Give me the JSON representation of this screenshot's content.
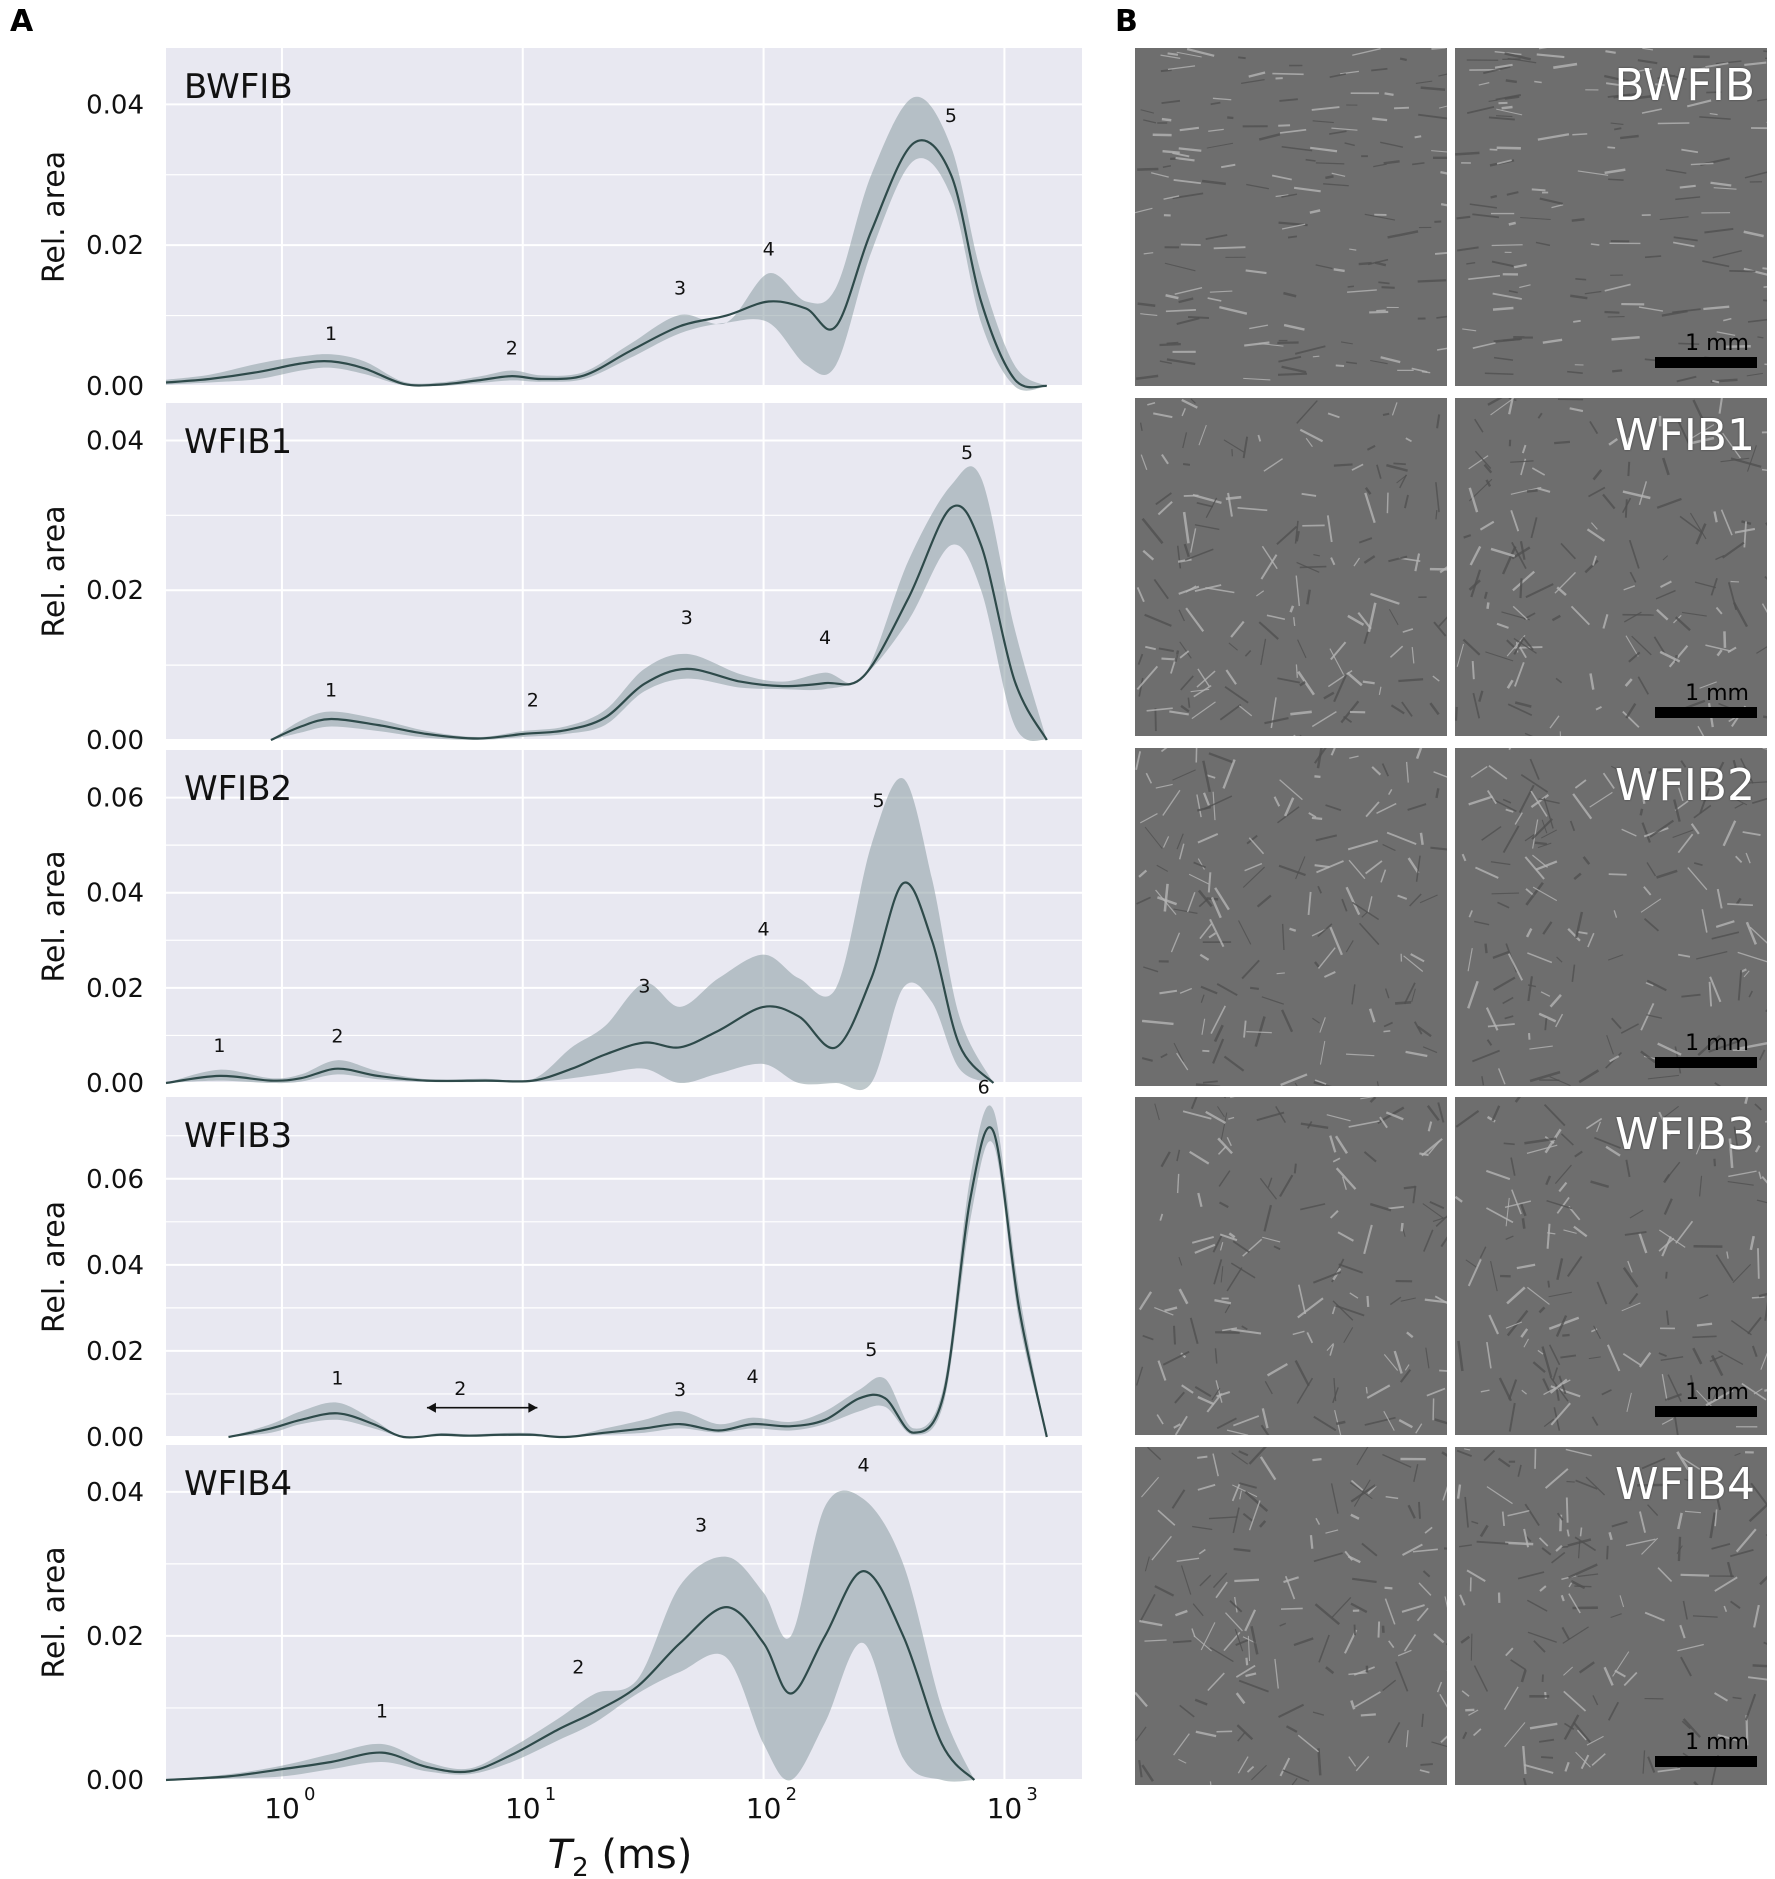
{
  "figure": {
    "panel_a_label": "A",
    "panel_b_label": "B",
    "x_axis_label": "T",
    "x_axis_label_sub": "2",
    "x_axis_label_unit": " (ms)",
    "y_axis_label": "Rel. area",
    "x_tick_labels": [
      {
        "base": "10",
        "exp": "0"
      },
      {
        "base": "10",
        "exp": "1"
      },
      {
        "base": "10",
        "exp": "2"
      },
      {
        "base": "10",
        "exp": "3"
      }
    ]
  },
  "colors": {
    "plot_background": "#e8e8f1",
    "grid": "#ffffff",
    "line": "#2e4a4a",
    "band": "#8a9da2",
    "image_tile": "#6e6e6e"
  },
  "images": {
    "scale_bar_label": "1 mm",
    "rows": [
      {
        "label": "BWFIB"
      },
      {
        "label": "WFIB1"
      },
      {
        "label": "WFIB2"
      },
      {
        "label": "WFIB3"
      },
      {
        "label": "WFIB4"
      }
    ]
  },
  "chart_data": [
    {
      "type": "line",
      "title": "BWFIB",
      "xlabel": "T2 (ms)",
      "ylabel": "Rel. area",
      "xscale": "log",
      "xlim": [
        0.33,
        2100
      ],
      "ylim": [
        0,
        0.048
      ],
      "yticks": [
        0.0,
        0.02,
        0.04
      ],
      "ytick_labels": [
        "0.00",
        "0.02",
        "0.04"
      ],
      "grid": true,
      "x": [
        0.33,
        0.5,
        0.8,
        1.2,
        1.6,
        2.2,
        3.2,
        4.5,
        6.5,
        9.0,
        12.0,
        18.0,
        28.0,
        45.0,
        70.0,
        105.0,
        150.0,
        200.0,
        280.0,
        420.0,
        600.0,
        800.0,
        1100.0,
        1500.0
      ],
      "y": [
        0.0005,
        0.001,
        0.002,
        0.0032,
        0.0035,
        0.0025,
        0.0003,
        0.0002,
        0.0008,
        0.0014,
        0.001,
        0.0015,
        0.005,
        0.0085,
        0.01,
        0.012,
        0.011,
        0.0085,
        0.022,
        0.0345,
        0.03,
        0.012,
        0.001,
        0.0
      ],
      "lower": [
        0.0002,
        0.0005,
        0.001,
        0.0022,
        0.0026,
        0.0017,
        0.0001,
        0.0,
        0.0004,
        0.0008,
        0.0006,
        0.001,
        0.004,
        0.0075,
        0.009,
        0.009,
        0.003,
        0.003,
        0.019,
        0.032,
        0.027,
        0.009,
        0.0,
        0.0
      ],
      "upper": [
        0.0009,
        0.0016,
        0.0032,
        0.0042,
        0.0045,
        0.0035,
        0.0006,
        0.0005,
        0.0013,
        0.0022,
        0.0015,
        0.002,
        0.006,
        0.0101,
        0.009,
        0.016,
        0.012,
        0.014,
        0.03,
        0.041,
        0.034,
        0.016,
        0.003,
        0.0
      ],
      "annotations": [
        {
          "text": "1",
          "x": 1.6,
          "y": 0.0065
        },
        {
          "text": "2",
          "x": 9.0,
          "y": 0.0045
        },
        {
          "text": "3",
          "x": 45.0,
          "y": 0.013
        },
        {
          "text": "4",
          "x": 105.0,
          "y": 0.0185
        },
        {
          "text": "5",
          "x": 600.0,
          "y": 0.0375
        }
      ]
    },
    {
      "type": "line",
      "title": "WFIB1",
      "xlabel": "T2 (ms)",
      "ylabel": "Rel. area",
      "xscale": "log",
      "xlim": [
        0.33,
        2100
      ],
      "ylim": [
        0,
        0.045
      ],
      "yticks": [
        0.0,
        0.02,
        0.04
      ],
      "ytick_labels": [
        "0.00",
        "0.02",
        "0.04"
      ],
      "grid": true,
      "x": [
        0.9,
        1.2,
        1.6,
        2.5,
        4.0,
        6.5,
        10.0,
        15.0,
        22.0,
        32.0,
        48.0,
        80.0,
        120.0,
        180.0,
        260.0,
        400.0,
        600.0,
        800.0,
        1100.0,
        1500.0
      ],
      "y": [
        0.0,
        0.0018,
        0.0028,
        0.002,
        0.0008,
        0.0002,
        0.0008,
        0.0013,
        0.003,
        0.0075,
        0.0095,
        0.0078,
        0.0072,
        0.0076,
        0.0085,
        0.019,
        0.031,
        0.026,
        0.008,
        0.0
      ],
      "lower": [
        0.0,
        0.001,
        0.0018,
        0.0012,
        0.0003,
        0.0,
        0.0004,
        0.0008,
        0.002,
        0.0065,
        0.0082,
        0.007,
        0.0068,
        0.0068,
        0.0085,
        0.016,
        0.026,
        0.02,
        0.002,
        0.0
      ],
      "upper": [
        0.0,
        0.0026,
        0.0038,
        0.0028,
        0.0012,
        0.0004,
        0.0012,
        0.0018,
        0.004,
        0.0095,
        0.0115,
        0.0088,
        0.0078,
        0.009,
        0.0085,
        0.024,
        0.034,
        0.035,
        0.015,
        0.0
      ],
      "annotations": [
        {
          "text": "1",
          "x": 1.6,
          "y": 0.0058
        },
        {
          "text": "2",
          "x": 11.0,
          "y": 0.0045
        },
        {
          "text": "3",
          "x": 48.0,
          "y": 0.0155
        },
        {
          "text": "4",
          "x": 180.0,
          "y": 0.0128
        },
        {
          "text": "5",
          "x": 700.0,
          "y": 0.0375
        }
      ]
    },
    {
      "type": "line",
      "title": "WFIB2",
      "xlabel": "T2 (ms)",
      "ylabel": "Rel. area",
      "xscale": "log",
      "xlim": [
        0.33,
        2100
      ],
      "ylim": [
        0,
        0.07
      ],
      "yticks": [
        0.0,
        0.02,
        0.04,
        0.06
      ],
      "ytick_labels": [
        "0.00",
        "0.02",
        "0.04",
        "0.06"
      ],
      "grid": true,
      "x": [
        0.33,
        0.55,
        0.9,
        1.2,
        1.7,
        2.5,
        4.0,
        7.0,
        11.0,
        16.0,
        22.0,
        32.0,
        45.0,
        65.0,
        100.0,
        140.0,
        200.0,
        280.0,
        380.0,
        500.0,
        650.0,
        900.0
      ],
      "y": [
        0.0,
        0.0015,
        0.0005,
        0.001,
        0.003,
        0.0015,
        0.0005,
        0.0005,
        0.0005,
        0.003,
        0.006,
        0.0085,
        0.0075,
        0.011,
        0.016,
        0.014,
        0.0075,
        0.022,
        0.042,
        0.03,
        0.008,
        0.0
      ],
      "lower": [
        0.0,
        0.0005,
        0.0,
        0.0003,
        0.0018,
        0.0008,
        0.0002,
        0.0002,
        0.0002,
        0.001,
        0.002,
        0.003,
        0.0,
        0.002,
        0.004,
        0.0,
        0.0,
        0.0,
        0.02,
        0.017,
        0.003,
        0.0
      ],
      "upper": [
        0.0,
        0.0028,
        0.001,
        0.0018,
        0.0048,
        0.0025,
        0.0008,
        0.0009,
        0.0008,
        0.0075,
        0.012,
        0.021,
        0.016,
        0.022,
        0.027,
        0.022,
        0.02,
        0.05,
        0.064,
        0.043,
        0.014,
        0.0
      ],
      "annotations": [
        {
          "text": "1",
          "x": 0.55,
          "y": 0.0065
        },
        {
          "text": "2",
          "x": 1.7,
          "y": 0.0085
        },
        {
          "text": "3",
          "x": 32.0,
          "y": 0.019
        },
        {
          "text": "4",
          "x": 100.0,
          "y": 0.031
        },
        {
          "text": "5",
          "x": 300.0,
          "y": 0.058
        }
      ]
    },
    {
      "type": "line",
      "title": "WFIB3",
      "xlabel": "T2 (ms)",
      "ylabel": "Rel. area",
      "xscale": "log",
      "xlim": [
        0.33,
        2100
      ],
      "ylim": [
        0,
        0.079
      ],
      "yticks": [
        0.0,
        0.02,
        0.04,
        0.06
      ],
      "ytick_labels": [
        "0.00",
        "0.02",
        "0.04",
        "0.06"
      ],
      "grid": true,
      "x": [
        0.6,
        0.9,
        1.2,
        1.7,
        2.4,
        3.2,
        4.5,
        6.0,
        8.0,
        11.0,
        15.0,
        22.0,
        32.0,
        45.0,
        65.0,
        90.0,
        130.0,
        180.0,
        250.0,
        320.0,
        420.0,
        560.0,
        720.0,
        900.0,
        1150.0,
        1500.0
      ],
      "y": [
        0.0,
        0.002,
        0.004,
        0.0055,
        0.003,
        0.0,
        0.0005,
        0.0003,
        0.0005,
        0.0005,
        0.0,
        0.001,
        0.002,
        0.003,
        0.0015,
        0.003,
        0.0025,
        0.004,
        0.009,
        0.009,
        0.001,
        0.01,
        0.055,
        0.071,
        0.03,
        0.0
      ],
      "lower": [
        0.0,
        0.001,
        0.003,
        0.004,
        0.002,
        0.0,
        0.0002,
        0.0001,
        0.0002,
        0.0002,
        0.0,
        0.0005,
        0.001,
        0.002,
        0.001,
        0.002,
        0.0015,
        0.003,
        0.006,
        0.007,
        0.0005,
        0.008,
        0.05,
        0.068,
        0.027,
        0.0
      ],
      "upper": [
        0.0,
        0.003,
        0.006,
        0.008,
        0.004,
        0.0,
        0.0009,
        0.0006,
        0.0009,
        0.0009,
        0.0,
        0.002,
        0.004,
        0.006,
        0.003,
        0.0045,
        0.0035,
        0.006,
        0.011,
        0.0135,
        0.002,
        0.012,
        0.06,
        0.076,
        0.034,
        0.0
      ],
      "annotations": [
        {
          "text": "1",
          "x": 1.7,
          "y": 0.0122
        },
        {
          "text": "2",
          "x": 5.5,
          "y": 0.0098
        },
        {
          "text": "3",
          "x": 45.0,
          "y": 0.0095
        },
        {
          "text": "4",
          "x": 90.0,
          "y": 0.0125
        },
        {
          "text": "5",
          "x": 280.0,
          "y": 0.0188
        },
        {
          "text": "6",
          "x": 820.0,
          "y": 0.0798
        }
      ],
      "range_arrow": {
        "x_from": 4.0,
        "x_to": 11.5,
        "y": 0.0068
      }
    },
    {
      "type": "line",
      "title": "WFIB4",
      "xlabel": "T2 (ms)",
      "ylabel": "Rel. area",
      "xscale": "log",
      "xlim": [
        0.33,
        2100
      ],
      "ylim": [
        0,
        0.0465
      ],
      "yticks": [
        0.0,
        0.02,
        0.04
      ],
      "ytick_labels": [
        "0.00",
        "0.02",
        "0.04"
      ],
      "grid": true,
      "x": [
        0.33,
        0.6,
        1.0,
        1.6,
        2.6,
        4.0,
        6.0,
        9.0,
        14.0,
        20.0,
        30.0,
        45.0,
        70.0,
        100.0,
        130.0,
        180.0,
        260.0,
        380.0,
        550.0,
        750.0
      ],
      "y": [
        0.0,
        0.0005,
        0.0015,
        0.0025,
        0.0038,
        0.0018,
        0.0012,
        0.0035,
        0.007,
        0.0095,
        0.013,
        0.019,
        0.024,
        0.019,
        0.012,
        0.02,
        0.029,
        0.02,
        0.005,
        0.0
      ],
      "lower": [
        0.0,
        0.0002,
        0.0005,
        0.0015,
        0.0025,
        0.0012,
        0.0008,
        0.0025,
        0.0055,
        0.008,
        0.012,
        0.015,
        0.017,
        0.005,
        0.0,
        0.008,
        0.019,
        0.003,
        0.0,
        0.0
      ],
      "upper": [
        0.0,
        0.0008,
        0.002,
        0.0036,
        0.005,
        0.0025,
        0.0016,
        0.0045,
        0.0085,
        0.012,
        0.014,
        0.027,
        0.031,
        0.026,
        0.02,
        0.038,
        0.039,
        0.03,
        0.01,
        0.0
      ],
      "annotations": [
        {
          "text": "1",
          "x": 2.6,
          "y": 0.0087
        },
        {
          "text": "2",
          "x": 17.0,
          "y": 0.0148
        },
        {
          "text": "3",
          "x": 55.0,
          "y": 0.0345
        },
        {
          "text": "4",
          "x": 260.0,
          "y": 0.0428
        }
      ]
    }
  ]
}
